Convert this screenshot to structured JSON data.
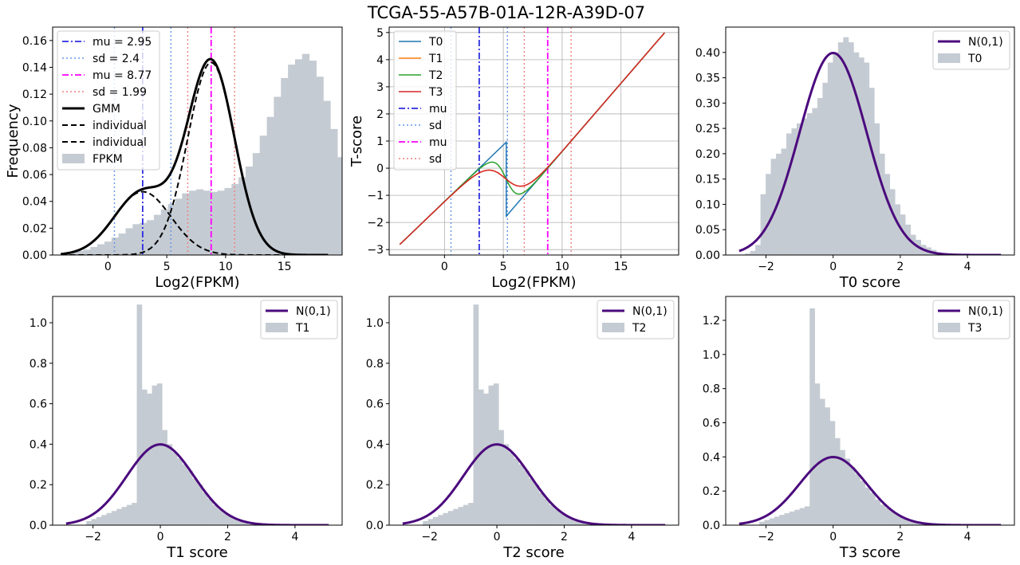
{
  "figure_title": "TCGA-55-A57B-01A-12R-A39D-07",
  "colors": {
    "hist": "#c5cbd2",
    "normal": "#4b0a7d",
    "mu1": "#2c2ce0",
    "sd1": "#6495ed",
    "mu2": "#ff00ff",
    "sd2": "#f08080",
    "T0": "#1f77b4",
    "T1": "#ff7f0e",
    "T2": "#2ca02c",
    "T3": "#d62728",
    "grid": "#b0b0b0"
  },
  "chart_data": [
    {
      "id": "p1",
      "type": "histogram+line",
      "xlabel": "Log2(FPKM)",
      "ylabel": "Frequency",
      "xlim": [
        -4.7,
        19.9
      ],
      "ylim": [
        0,
        0.17
      ],
      "xticks": [
        0,
        5,
        10,
        15
      ],
      "yticks": [
        0.0,
        0.02,
        0.04,
        0.06,
        0.08,
        0.1,
        0.12,
        0.14,
        0.16
      ],
      "ytick_labels": [
        "0.00",
        "0.02",
        "0.04",
        "0.06",
        "0.08",
        "0.10",
        "0.12",
        "0.14",
        "0.16"
      ],
      "grid": false,
      "legend_position": "top-left",
      "legend": [
        "mu = 2.95",
        "sd = 2.4",
        "mu = 8.77",
        "sd = 1.99",
        "GMM",
        "individual",
        "individual",
        "FPKM"
      ],
      "hist_bin_width": 0.6,
      "hist_x_start": -3.9,
      "hist_heights": [
        0.001,
        0.002,
        0.003,
        0.004,
        0.006,
        0.008,
        0.01,
        0.013,
        0.016,
        0.02,
        0.023,
        0.024,
        0.026,
        0.03,
        0.034,
        0.038,
        0.042,
        0.046,
        0.048,
        0.049,
        0.048,
        0.047,
        0.048,
        0.05,
        0.053,
        0.058,
        0.066,
        0.076,
        0.089,
        0.103,
        0.118,
        0.132,
        0.142,
        0.146,
        0.15,
        0.145,
        0.133,
        0.115,
        0.094,
        0.073,
        0.054,
        0.038,
        0.026,
        0.017,
        0.01,
        0.006,
        0.003,
        0.002,
        0.001,
        0.001
      ],
      "gmm": {
        "mu1": 2.95,
        "sd1": 2.4,
        "w1": 0.284,
        "mu2": 8.77,
        "sd2": 1.99,
        "w2": 0.716
      },
      "curve_x_range": [
        -4.0,
        18.7
      ],
      "vlines": [
        {
          "x": 2.95,
          "style": "mu1"
        },
        {
          "x": 0.55,
          "style": "sd1"
        },
        {
          "x": 5.35,
          "style": "sd1"
        },
        {
          "x": 8.77,
          "style": "mu2"
        },
        {
          "x": 6.78,
          "style": "sd2"
        },
        {
          "x": 10.76,
          "style": "sd2"
        }
      ]
    },
    {
      "id": "p2",
      "type": "line",
      "xlabel": "Log2(FPKM)",
      "ylabel": "T-score",
      "xlim": [
        -4.7,
        19.9
      ],
      "ylim": [
        -3.2,
        5.2
      ],
      "xticks": [
        0,
        5,
        10,
        15
      ],
      "yticks": [
        -3,
        -2,
        -1,
        0,
        1,
        2,
        3,
        4,
        5
      ],
      "grid": true,
      "legend_position": "top-left",
      "legend": [
        "T0",
        "T1",
        "T2",
        "T3",
        "mu",
        "sd",
        "mu",
        "sd"
      ],
      "x_range": [
        -3.8,
        18.7
      ],
      "t_params": {
        "mu1": 2.95,
        "sd1": 2.4,
        "mu2": 8.77,
        "sd2": 1.99
      },
      "vlines": [
        {
          "x": 2.95,
          "style": "mu1"
        },
        {
          "x": 0.55,
          "style": "sd1"
        },
        {
          "x": 5.35,
          "style": "sd1"
        },
        {
          "x": 8.77,
          "style": "mu2"
        },
        {
          "x": 6.78,
          "style": "sd2"
        },
        {
          "x": 10.76,
          "style": "sd2"
        }
      ]
    },
    {
      "id": "p3",
      "type": "histogram+line",
      "xlabel": "T0 score",
      "xlim": [
        -3.2,
        5.4
      ],
      "ylim": [
        0,
        0.45
      ],
      "xticks": [
        -2,
        0,
        2,
        4
      ],
      "yticks": [
        0.0,
        0.05,
        0.1,
        0.15,
        0.2,
        0.25,
        0.3,
        0.35,
        0.4
      ],
      "ytick_labels": [
        "0.00",
        "0.05",
        "0.10",
        "0.15",
        "0.20",
        "0.25",
        "0.30",
        "0.35",
        "0.40"
      ],
      "legend_position": "top-right",
      "legend": [
        "N(0,1)",
        "T0"
      ],
      "hist_bin_width": 0.154,
      "hist_x_start": -2.78,
      "hist_heights": [
        0.001,
        0.003,
        0.008,
        0.02,
        0.12,
        0.16,
        0.19,
        0.2,
        0.21,
        0.24,
        0.25,
        0.26,
        0.27,
        0.28,
        0.29,
        0.31,
        0.34,
        0.38,
        0.4,
        0.42,
        0.43,
        0.42,
        0.4,
        0.39,
        0.38,
        0.33,
        0.26,
        0.2,
        0.16,
        0.13,
        0.1,
        0.08,
        0.06,
        0.04,
        0.03,
        0.02,
        0.015,
        0.01,
        0.005,
        0.003,
        0.002,
        0.002,
        0.002,
        0.001
      ],
      "normal_x_range": [
        -2.8,
        5.0
      ]
    },
    {
      "id": "p4",
      "type": "histogram+line",
      "xlabel": "T1 score",
      "xlim": [
        -3.2,
        5.4
      ],
      "ylim": [
        0,
        1.13
      ],
      "xticks": [
        -2,
        0,
        2,
        4
      ],
      "yticks": [
        0.0,
        0.2,
        0.4,
        0.6,
        0.8,
        1.0
      ],
      "ytick_labels": [
        "0.0",
        "0.2",
        "0.4",
        "0.6",
        "0.8",
        "1.0"
      ],
      "legend_position": "top-right",
      "legend": [
        "N(0,1)",
        "T1"
      ],
      "hist_bin_width": 0.15,
      "hist_x_start": -2.2,
      "hist_heights": [
        0.02,
        0.03,
        0.04,
        0.05,
        0.06,
        0.07,
        0.08,
        0.09,
        0.1,
        0.11,
        1.09,
        0.67,
        0.65,
        0.69,
        0.7,
        0.47,
        0.4,
        0.36,
        0.33,
        0.3,
        0.27,
        0.23,
        0.2,
        0.16,
        0.13,
        0.1,
        0.08,
        0.06,
        0.045,
        0.03,
        0.02,
        0.012,
        0.006,
        0.003
      ],
      "normal_x_range": [
        -2.8,
        5.0
      ]
    },
    {
      "id": "p5",
      "type": "histogram+line",
      "xlabel": "T2 score",
      "xlim": [
        -3.2,
        5.4
      ],
      "ylim": [
        0,
        1.13
      ],
      "xticks": [
        -2,
        0,
        2,
        4
      ],
      "yticks": [
        0.0,
        0.2,
        0.4,
        0.6,
        0.8,
        1.0
      ],
      "ytick_labels": [
        "0.0",
        "0.2",
        "0.4",
        "0.6",
        "0.8",
        "1.0"
      ],
      "legend_position": "top-right",
      "legend": [
        "N(0,1)",
        "T2"
      ],
      "hist_bin_width": 0.15,
      "hist_x_start": -2.2,
      "hist_heights": [
        0.02,
        0.03,
        0.04,
        0.05,
        0.06,
        0.07,
        0.08,
        0.09,
        0.1,
        0.11,
        1.09,
        0.67,
        0.65,
        0.69,
        0.7,
        0.47,
        0.4,
        0.36,
        0.33,
        0.3,
        0.27,
        0.23,
        0.2,
        0.16,
        0.13,
        0.1,
        0.08,
        0.06,
        0.045,
        0.03,
        0.02,
        0.012,
        0.006,
        0.003
      ],
      "normal_x_range": [
        -2.8,
        5.0
      ]
    },
    {
      "id": "p6",
      "type": "histogram+line",
      "xlabel": "T3 score",
      "xlim": [
        -3.2,
        5.4
      ],
      "ylim": [
        0,
        1.34
      ],
      "xticks": [
        -2,
        0,
        2,
        4
      ],
      "yticks": [
        0.0,
        0.2,
        0.4,
        0.6,
        0.8,
        1.0,
        1.2
      ],
      "ytick_labels": [
        "0.0",
        "0.2",
        "0.4",
        "0.6",
        "0.8",
        "1.0",
        "1.2"
      ],
      "legend_position": "top-right",
      "legend": [
        "N(0,1)",
        "T3"
      ],
      "hist_bin_width": 0.15,
      "hist_x_start": -2.2,
      "hist_heights": [
        0.02,
        0.03,
        0.04,
        0.05,
        0.06,
        0.07,
        0.08,
        0.09,
        0.1,
        0.11,
        1.27,
        0.83,
        0.74,
        0.69,
        0.61,
        0.51,
        0.44,
        0.39,
        0.34,
        0.3,
        0.26,
        0.22,
        0.19,
        0.15,
        0.12,
        0.1,
        0.08,
        0.06,
        0.045,
        0.03,
        0.02,
        0.012,
        0.006,
        0.003
      ],
      "normal_x_range": [
        -2.8,
        5.0
      ]
    }
  ]
}
